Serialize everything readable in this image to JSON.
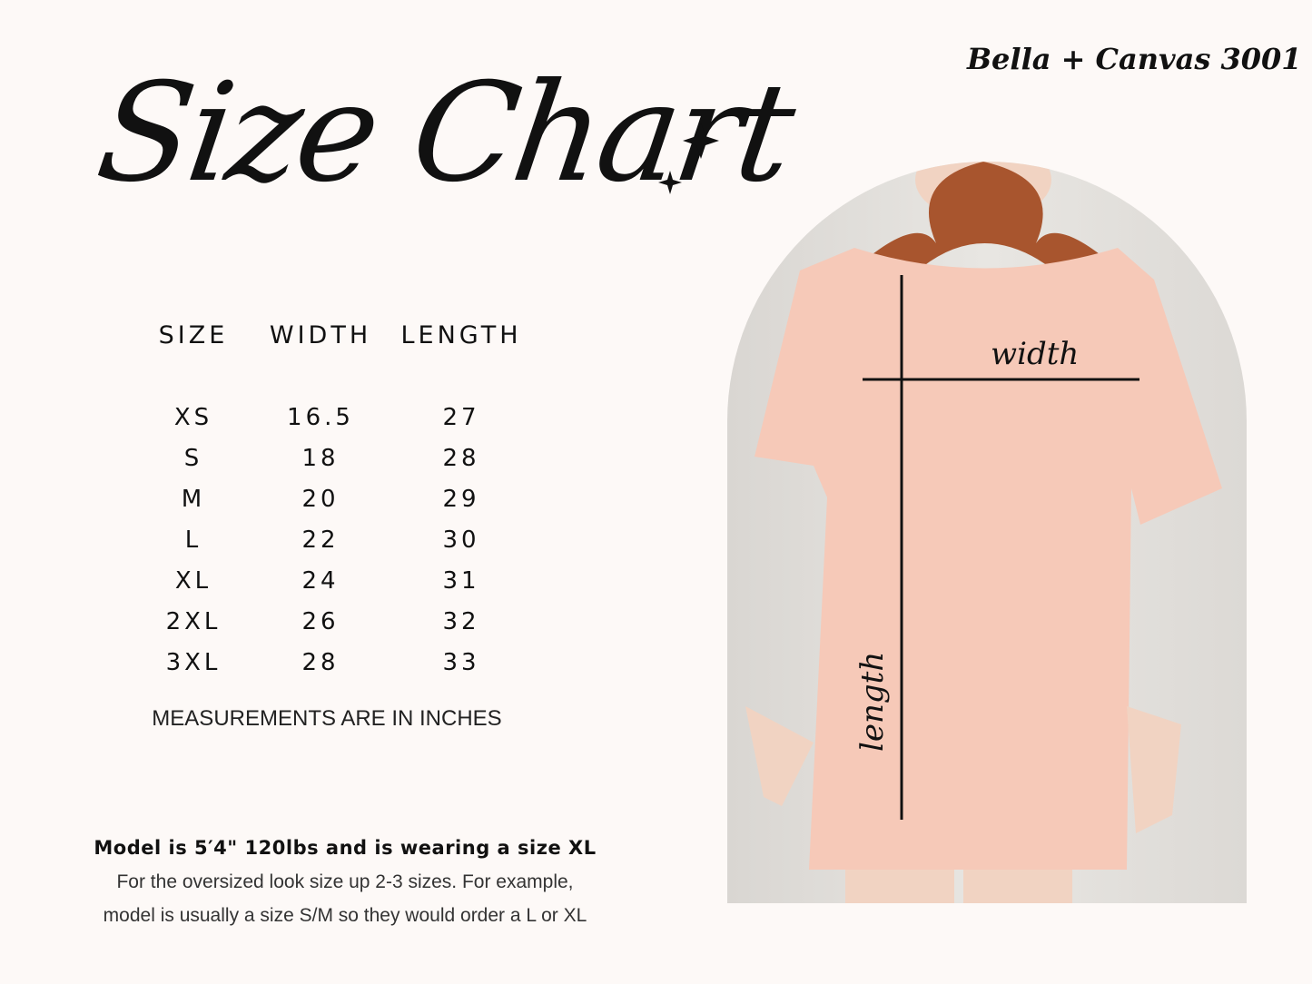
{
  "title": "Size Chart",
  "brand": "Bella + Canvas 3001",
  "table": {
    "headers": [
      "SIZE",
      "WIDTH",
      "LENGTH"
    ],
    "rows": [
      [
        "XS",
        "16.5",
        "27"
      ],
      [
        "S",
        "18",
        "28"
      ],
      [
        "M",
        "20",
        "29"
      ],
      [
        "L",
        "22",
        "30"
      ],
      [
        "XL",
        "24",
        "31"
      ],
      [
        "2XL",
        "26",
        "32"
      ],
      [
        "3XL",
        "28",
        "33"
      ]
    ]
  },
  "note": "MEASUREMENTS ARE IN INCHES",
  "model": {
    "headline": "Model is 5′4\" 120lbs and is wearing a size XL",
    "line1": "For the oversized look size up 2-3 sizes. For example,",
    "line2": "model is usually a size S/M so they would order a L or XL"
  },
  "photo": {
    "width_label": "width",
    "length_label": "length",
    "shirt_color": "#f6c9b8"
  }
}
